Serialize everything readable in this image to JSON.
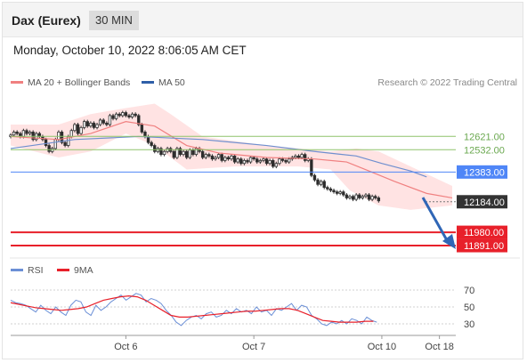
{
  "header": {
    "instrument": "Dax (Eurex)",
    "timeframe": "30 MIN",
    "datetime": "Monday, October 10, 2022 8:06:05 AM CET"
  },
  "legend": {
    "ma20": "MA 20 + Bollinger Bands",
    "ma50": "MA 50",
    "credit": "Research © 2022 Trading Central",
    "rsi": "RSI",
    "ma9": "9MA"
  },
  "colors": {
    "ma20": "#f08080",
    "band": "#ffd9d9",
    "ma50": "#6f8fcf",
    "green_level": "#8fc46b",
    "blue_level": "#4f86f7",
    "red_level": "#e8202a",
    "current": "#333333",
    "arrow": "#2f66b6",
    "rsi": "#6b8fd6",
    "rsi_ma": "#e8202a"
  },
  "levels": [
    {
      "value": 12621.0,
      "label": "12621.00",
      "kind": "green"
    },
    {
      "value": 12532.0,
      "label": "12532.00",
      "kind": "green"
    },
    {
      "value": 12383.0,
      "label": "12383.00",
      "kind": "blue"
    },
    {
      "value": 12184.0,
      "label": "12184.00",
      "kind": "current"
    },
    {
      "value": 11980.0,
      "label": "11980.00",
      "kind": "red"
    },
    {
      "value": 11891.0,
      "label": "11891.00",
      "kind": "red"
    }
  ],
  "chart_data": {
    "type": "candlestick",
    "price_range": [
      11820,
      12920
    ],
    "x_range": [
      0,
      138
    ],
    "x_ticks": [
      {
        "pos": 36,
        "label": "Oct 6"
      },
      {
        "pos": 76,
        "label": "Oct 7"
      },
      {
        "pos": 116,
        "label": "Oct 10"
      },
      {
        "pos": 134,
        "label": "Oct 18"
      }
    ],
    "close": [
      12630,
      12650,
      12640,
      12620,
      12660,
      12640,
      12650,
      12600,
      12640,
      12620,
      12600,
      12560,
      12520,
      12540,
      12600,
      12650,
      12580,
      12560,
      12620,
      12660,
      12700,
      12640,
      12680,
      12720,
      12690,
      12710,
      12680,
      12700,
      12730,
      12710,
      12700,
      12760,
      12740,
      12770,
      12760,
      12780,
      12760,
      12750,
      12770,
      12760,
      12700,
      12650,
      12620,
      12580,
      12560,
      12520,
      12540,
      12500,
      12520,
      12540,
      12520,
      12480,
      12540,
      12500,
      12520,
      12480,
      12530,
      12500,
      12540,
      12520,
      12480,
      12500,
      12490,
      12470,
      12480,
      12500,
      12460,
      12480,
      12470,
      12490,
      12450,
      12470,
      12440,
      12460,
      12450,
      12480,
      12470,
      12450,
      12460,
      12470,
      12440,
      12460,
      12420,
      12440,
      12470,
      12460,
      12450,
      12470,
      12480,
      12490,
      12480,
      12500,
      12460,
      12470,
      12360,
      12330,
      12300,
      12320,
      12280,
      12270,
      12260,
      12250,
      12240,
      12250,
      12230,
      12210,
      12220,
      12200,
      12230,
      12210,
      12220,
      12230,
      12200,
      12220,
      12210,
      12190
    ],
    "ma20_bollinger": {
      "mid": [
        [
          0,
          12620
        ],
        [
          15,
          12600
        ],
        [
          25,
          12640
        ],
        [
          36,
          12720
        ],
        [
          45,
          12690
        ],
        [
          55,
          12560
        ],
        [
          65,
          12510
        ],
        [
          80,
          12480
        ],
        [
          95,
          12470
        ],
        [
          105,
          12450
        ],
        [
          112,
          12390
        ],
        [
          120,
          12320
        ],
        [
          130,
          12240
        ],
        [
          138,
          12210
        ]
      ],
      "upper": [
        [
          0,
          12700
        ],
        [
          15,
          12700
        ],
        [
          25,
          12770
        ],
        [
          36,
          12810
        ],
        [
          45,
          12840
        ],
        [
          50,
          12770
        ],
        [
          60,
          12620
        ],
        [
          80,
          12560
        ],
        [
          100,
          12520
        ],
        [
          108,
          12540
        ],
        [
          115,
          12520
        ],
        [
          125,
          12420
        ],
        [
          138,
          12290
        ]
      ],
      "lower": [
        [
          0,
          12560
        ],
        [
          15,
          12480
        ],
        [
          25,
          12520
        ],
        [
          36,
          12640
        ],
        [
          45,
          12560
        ],
        [
          55,
          12400
        ],
        [
          70,
          12420
        ],
        [
          90,
          12420
        ],
        [
          100,
          12400
        ],
        [
          106,
          12260
        ],
        [
          115,
          12160
        ],
        [
          125,
          12130
        ],
        [
          138,
          12160
        ]
      ]
    },
    "ma50": [
      [
        0,
        12540
      ],
      [
        20,
        12600
      ],
      [
        40,
        12620
      ],
      [
        60,
        12600
      ],
      [
        80,
        12560
      ],
      [
        95,
        12520
      ],
      [
        108,
        12490
      ],
      [
        116,
        12440
      ],
      [
        125,
        12390
      ],
      [
        130,
        12350
      ]
    ],
    "rsi": {
      "range": [
        0,
        100
      ],
      "ticks": [
        30,
        50,
        70
      ],
      "values": [
        58,
        55,
        54,
        52,
        48,
        44,
        52,
        46,
        42,
        50,
        44,
        40,
        52,
        58,
        56,
        44,
        40,
        52,
        46,
        50,
        56,
        60,
        64,
        58,
        62,
        66,
        64,
        56,
        60,
        58,
        54,
        46,
        40,
        32,
        28,
        34,
        38,
        40,
        36,
        42,
        44,
        38,
        40,
        46,
        42,
        48,
        44,
        46,
        42,
        50,
        44,
        46,
        40,
        48,
        46,
        50,
        54,
        46,
        52,
        50,
        40,
        36,
        30,
        28,
        32,
        30,
        34,
        30,
        36,
        34,
        30,
        38,
        34,
        32
      ],
      "ma": [
        55,
        53,
        51,
        49,
        48,
        47,
        46,
        47,
        48,
        50,
        54,
        58,
        60,
        62,
        63,
        62,
        58,
        52,
        46,
        40,
        38,
        38,
        39,
        40,
        41,
        42,
        43,
        44,
        45,
        45,
        46,
        47,
        48,
        48,
        46,
        42,
        38,
        34,
        33,
        32,
        32,
        32,
        33,
        33
      ]
    }
  }
}
